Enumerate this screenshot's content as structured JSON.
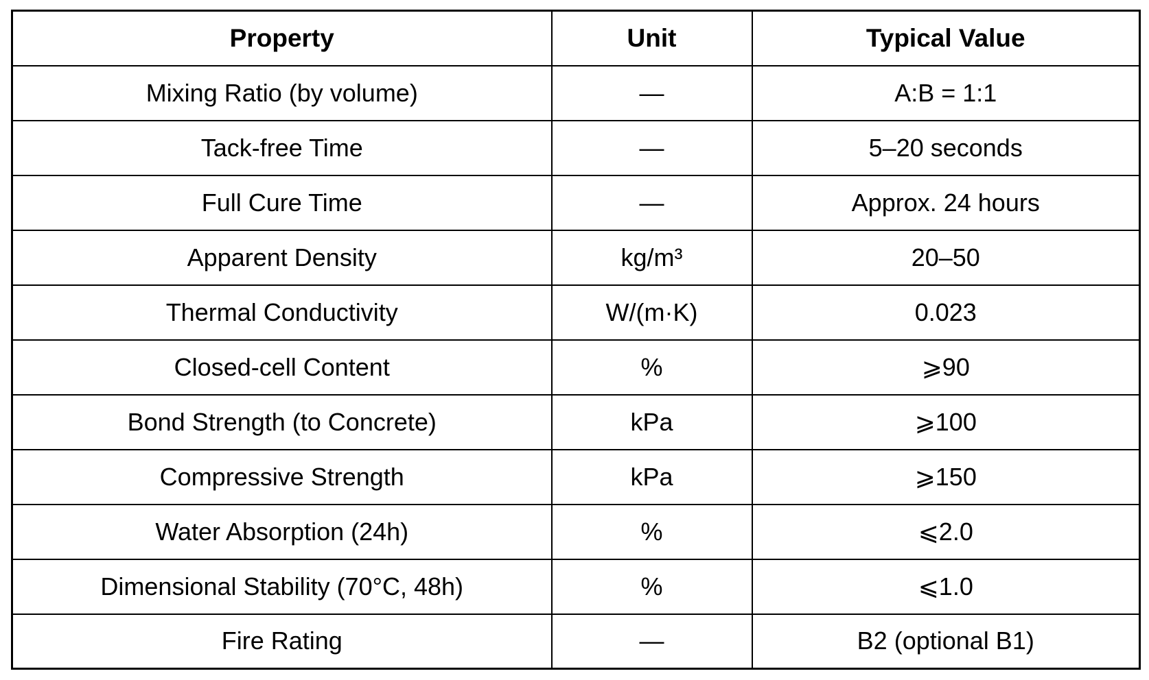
{
  "table": {
    "headers": [
      "Property",
      "Unit",
      "Typical Value"
    ],
    "rows": [
      {
        "property": "Mixing Ratio (by volume)",
        "unit": "—",
        "value": "A:B = 1:1"
      },
      {
        "property": "Tack-free Time",
        "unit": "—",
        "value": "5–20 seconds"
      },
      {
        "property": "Full Cure Time",
        "unit": "—",
        "value": "Approx. 24 hours"
      },
      {
        "property": "Apparent Density",
        "unit": "kg/m³",
        "value": "20–50"
      },
      {
        "property": "Thermal Conductivity",
        "unit": "W/(m·K)",
        "value": "0.023"
      },
      {
        "property": "Closed-cell Content",
        "unit": "%",
        "value": "⩾90"
      },
      {
        "property": "Bond Strength (to Concrete)",
        "unit": "kPa",
        "value": "⩾100"
      },
      {
        "property": "Compressive Strength",
        "unit": "kPa",
        "value": "⩾150"
      },
      {
        "property": "Water Absorption (24h)",
        "unit": "%",
        "value": "⩽2.0"
      },
      {
        "property": "Dimensional Stability (70°C, 48h)",
        "unit": "%",
        "value": "⩽1.0"
      },
      {
        "property": "Fire Rating",
        "unit": "—",
        "value": "B2 (optional B1)"
      }
    ],
    "colors": {
      "border": "#000000",
      "text": "#000000",
      "background": "#ffffff"
    }
  }
}
